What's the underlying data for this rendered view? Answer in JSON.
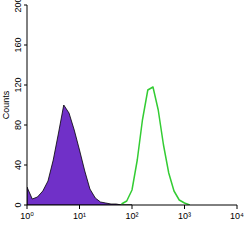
{
  "chart_data": {
    "type": "area",
    "y_label": "Counts",
    "log": "x",
    "xlim": [
      1,
      10000
    ],
    "xticks": [
      {
        "value": 1,
        "label": "10⁰"
      },
      {
        "value": 10,
        "label": "10¹"
      },
      {
        "value": 100,
        "label": "10²"
      },
      {
        "value": 1000,
        "label": "10³"
      },
      {
        "value": 10000,
        "label": "10⁴"
      }
    ],
    "ylim": [
      0,
      200
    ],
    "yticks": [
      0,
      40,
      80,
      120,
      160,
      200
    ],
    "x": [
      1,
      1.26,
      1.58,
      2,
      2.51,
      3.16,
      3.98,
      5.01,
      6.31,
      7.94,
      10,
      12.6,
      15.8,
      20,
      25.1,
      31.6,
      39.8,
      50.1,
      63.1,
      79.4,
      100,
      126,
      158,
      200,
      251,
      316,
      398,
      501,
      631,
      794,
      1000,
      1259
    ],
    "series": [
      {
        "type": "area",
        "color": "#7030c8",
        "values": [
          18,
          6,
          8,
          14,
          24,
          45,
          72,
          100,
          92,
          75,
          55,
          34,
          16,
          7,
          3,
          2,
          1,
          1,
          0,
          0,
          0,
          null,
          null,
          null,
          null,
          null,
          null,
          null,
          null,
          null,
          null,
          null
        ]
      },
      {
        "type": "line",
        "color": "#33cc33",
        "values": [
          null,
          null,
          null,
          null,
          null,
          null,
          null,
          null,
          null,
          null,
          null,
          null,
          null,
          null,
          null,
          null,
          null,
          null,
          1,
          4,
          15,
          45,
          85,
          115,
          118,
          95,
          60,
          32,
          14,
          5,
          2,
          0
        ]
      }
    ]
  }
}
